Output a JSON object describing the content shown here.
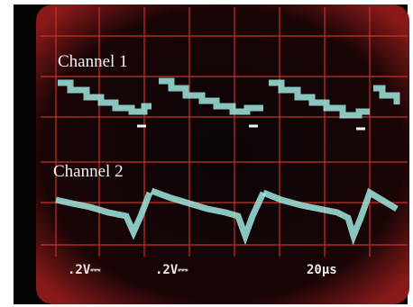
{
  "labels": {
    "channel_1": "Channel 1",
    "channel_2": "Channel 2"
  },
  "readout": {
    "ch1_scale": ".2V⎓",
    "ch2_scale": ".2V⎓",
    "timebase": "20µs"
  }
}
